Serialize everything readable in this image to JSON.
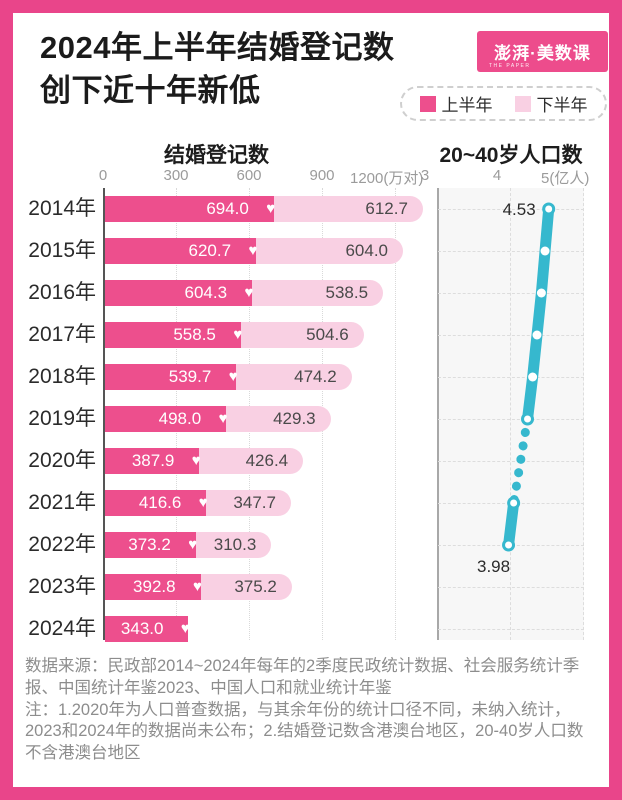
{
  "header": {
    "title_line1": "2024年上半年结婚登记数",
    "title_line2": "创下近十年新低",
    "logo_text": "澎湃·美数课",
    "logo_sub": "THE PAPER",
    "legend": [
      {
        "label": "上半年",
        "color": "#ED4F8D"
      },
      {
        "label": "下半年",
        "color": "#F9D0E3"
      }
    ]
  },
  "colors": {
    "brand_pink": "#E9458A",
    "bar_first_half": "#ED4F8D",
    "bar_second_half": "#F9D0E3",
    "line_teal": "#36B8CE"
  },
  "chart_data": [
    {
      "type": "bar",
      "orientation": "horizontal",
      "title": "结婚登记数",
      "unit": "万对",
      "xlim": [
        0,
        1200
      ],
      "xticks": [
        "0",
        "300",
        "600",
        "900",
        "1200(万对)"
      ],
      "grid": "vertical-dotted",
      "categories": [
        "2014年",
        "2015年",
        "2016年",
        "2017年",
        "2018年",
        "2019年",
        "2020年",
        "2021年",
        "2022年",
        "2023年",
        "2024年"
      ],
      "series": [
        {
          "name": "上半年",
          "values": [
            694.0,
            620.7,
            604.3,
            558.5,
            539.7,
            498.0,
            387.9,
            416.6,
            373.2,
            392.8,
            343.0
          ]
        },
        {
          "name": "下半年",
          "values": [
            612.7,
            604.0,
            538.5,
            504.6,
            474.2,
            429.3,
            426.4,
            347.7,
            310.3,
            375.2,
            null
          ]
        }
      ]
    },
    {
      "type": "line",
      "title": "20~40岁人口数",
      "unit": "亿人",
      "xlim": [
        3,
        5
      ],
      "xticks": [
        "3",
        "4",
        "5(亿人)"
      ],
      "categories": [
        "2014年",
        "2015年",
        "2016年",
        "2017年",
        "2018年",
        "2019年",
        "2020年",
        "2021年",
        "2022年",
        "2023年",
        "2024年"
      ],
      "values": [
        4.53,
        4.48,
        4.43,
        4.37,
        4.31,
        4.24,
        null,
        4.05,
        3.98,
        null,
        null
      ],
      "dashed_gap_between": [
        "2019年",
        "2021年"
      ],
      "point_labels": {
        "2014年": "4.53",
        "2022年": "3.98"
      }
    }
  ],
  "footer": {
    "source": "数据来源：民政部2014~2024年每年的2季度民政统计数据、社会服务统计季报、中国统计年鉴2023、中国人口和就业统计年鉴",
    "note": "注：1.2020年为人口普查数据，与其余年份的统计口径不同，未纳入统计，2023和2024年的数据尚未公布；2.结婚登记数含港澳台地区，20-40岁人口数不含港澳台地区"
  }
}
